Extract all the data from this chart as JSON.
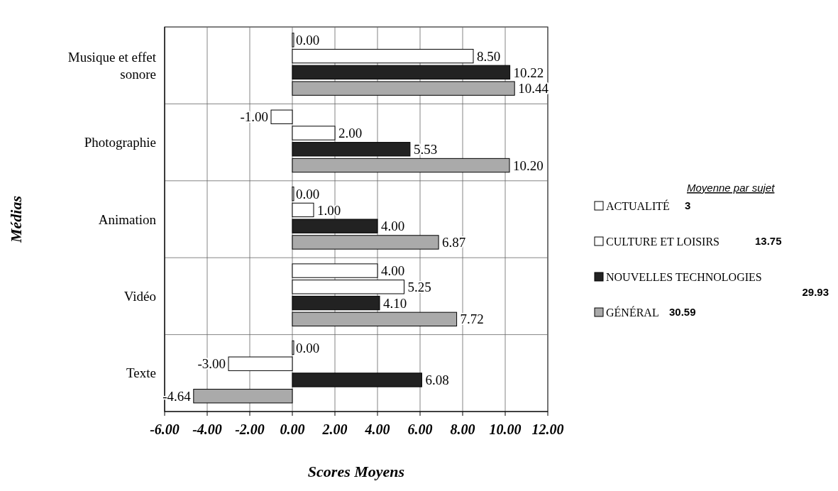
{
  "chart_data": {
    "type": "bar",
    "orientation": "horizontal",
    "xlabel": "Scores Moyens",
    "ylabel": "Médias",
    "legend_title": "Moyenne par sujet",
    "legend": "right",
    "grid": true,
    "categories": [
      "Musique et effet sonore",
      "Photographie",
      "Animation",
      "Vidéo",
      "Texte"
    ],
    "xlim": [
      -6,
      12
    ],
    "xticks": [
      {
        "value": -6,
        "label": "-6.00"
      },
      {
        "value": -4,
        "label": "-4.00"
      },
      {
        "value": -2,
        "label": "-2.00"
      },
      {
        "value": 0,
        "label": "0.00"
      },
      {
        "value": 2,
        "label": "2.00"
      },
      {
        "value": 4,
        "label": "4.00"
      },
      {
        "value": 6,
        "label": "6.00"
      },
      {
        "value": 8,
        "label": "8.00"
      },
      {
        "value": 10,
        "label": "10.00"
      },
      {
        "value": 12,
        "label": "12.00"
      }
    ],
    "series": [
      {
        "name": "ACTUALITÉ",
        "color": "#ffffff",
        "values": [
          0,
          -1,
          0,
          4,
          0
        ],
        "value_labels": [
          "0.00",
          "-1.00",
          "0.00",
          "4.00",
          "0.00"
        ]
      },
      {
        "name": "CULTURE ET LOISIRS",
        "color": "#ffffff",
        "values": [
          8.5,
          2,
          1,
          5.25,
          -3
        ],
        "value_labels": [
          "8.50",
          "2.00",
          "1.00",
          "5.25",
          "-3.00"
        ]
      },
      {
        "name": "NOUVELLES TECHNOLOGIES",
        "color": "#222222",
        "values": [
          10.22,
          5.53,
          4,
          4.1,
          6.08
        ],
        "value_labels": [
          "10.22",
          "5.53",
          "4.00",
          "4.10",
          "6.08"
        ]
      },
      {
        "name": "GÉNÉRAL",
        "color": "#aaaaaa",
        "values": [
          10.44,
          10.2,
          6.87,
          7.72,
          -4.64
        ],
        "value_labels": [
          "10.44",
          "10.20",
          "6.87",
          "7.72",
          "-4.64"
        ]
      }
    ],
    "annotations": [
      "3",
      "13.75",
      "29.93",
      "30.59"
    ]
  }
}
